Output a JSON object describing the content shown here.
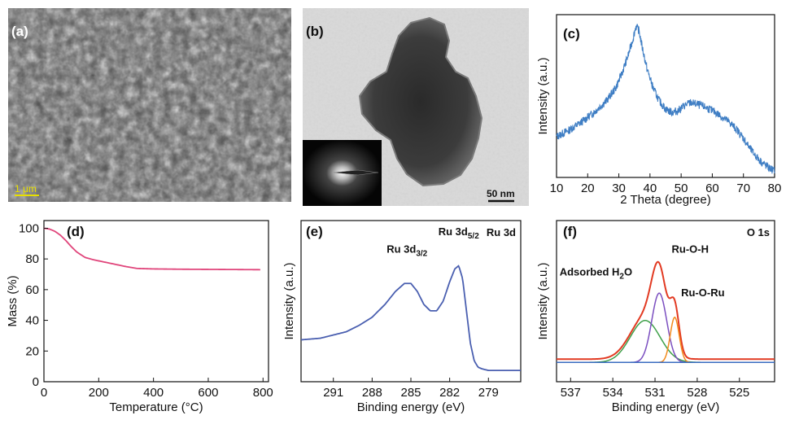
{
  "panels": {
    "a": {
      "label": "(a)",
      "scale_bar": "1 μm"
    },
    "b": {
      "label": "(b)",
      "scale_bar": "50 nm"
    },
    "c": {
      "label": "(c)"
    },
    "d": {
      "label": "(d)"
    },
    "e": {
      "label": "(e)",
      "corner": "Ru 3d"
    },
    "f": {
      "label": "(f)",
      "corner": "O 1s"
    }
  },
  "chart_data": [
    {
      "panel": "c",
      "type": "line",
      "xlabel": "2 Theta (degree)",
      "ylabel": "Intensity (a.u.)",
      "xlim": [
        10,
        80
      ],
      "ylim": [
        0,
        1
      ],
      "xticks": [
        10,
        20,
        30,
        40,
        50,
        60,
        70,
        80
      ],
      "color": "#3f7ec4",
      "noise": true,
      "series": [
        {
          "x": [
            10,
            14,
            18,
            22,
            26,
            29,
            31,
            33,
            34.5,
            35.5,
            36.5,
            37.5,
            39,
            41,
            43,
            45,
            47,
            49,
            51,
            53,
            55,
            58,
            61,
            64,
            66,
            68,
            70,
            72,
            74,
            76,
            78,
            80
          ],
          "y": [
            0.25,
            0.29,
            0.34,
            0.4,
            0.47,
            0.55,
            0.64,
            0.75,
            0.85,
            0.93,
            0.9,
            0.8,
            0.67,
            0.55,
            0.47,
            0.42,
            0.4,
            0.41,
            0.44,
            0.46,
            0.45,
            0.43,
            0.4,
            0.36,
            0.33,
            0.29,
            0.24,
            0.18,
            0.13,
            0.09,
            0.06,
            0.04
          ]
        }
      ]
    },
    {
      "panel": "d",
      "type": "line",
      "xlabel": "Temperature (°C)",
      "ylabel": "Mass (%)",
      "xlim": [
        0,
        820
      ],
      "ylim": [
        0,
        105
      ],
      "xticks": [
        0,
        200,
        400,
        600,
        800
      ],
      "yticks": [
        0,
        20,
        40,
        60,
        80,
        100
      ],
      "color": "#e0457b",
      "series": [
        {
          "x": [
            0,
            20,
            40,
            60,
            80,
            100,
            120,
            150,
            180,
            220,
            260,
            300,
            340,
            400,
            500,
            600,
            700,
            790
          ],
          "y": [
            100,
            99.5,
            98,
            95.5,
            92,
            88,
            84.5,
            81,
            79.5,
            78,
            76.5,
            75,
            73.8,
            73.5,
            73.3,
            73.2,
            73.1,
            73
          ]
        }
      ]
    },
    {
      "panel": "e",
      "type": "line",
      "xlabel": "Binding energy (eV)",
      "ylabel": "Intensity (a.u.)",
      "xlim": [
        293.5,
        276.5
      ],
      "ylim": [
        0,
        1
      ],
      "xticks": [
        291,
        288,
        285,
        282,
        279
      ],
      "color": "#4a5fb0",
      "annotations": [
        {
          "text": "Ru 3d",
          "sub": "3/2",
          "x": 285.3,
          "y": 0.8
        },
        {
          "text": "Ru 3d",
          "sub": "5/2",
          "x": 281.3,
          "y": 0.91
        }
      ],
      "series": [
        {
          "x": [
            293.5,
            292,
            291,
            290,
            289,
            288,
            287,
            286.2,
            285.5,
            285,
            284.5,
            284,
            283.5,
            283,
            282.5,
            282,
            281.6,
            281.3,
            281,
            280.7,
            280.4,
            280.1,
            279.8,
            279.5,
            279,
            278,
            277,
            276.5
          ],
          "y": [
            0.26,
            0.27,
            0.29,
            0.31,
            0.35,
            0.4,
            0.48,
            0.56,
            0.61,
            0.61,
            0.56,
            0.48,
            0.44,
            0.44,
            0.5,
            0.62,
            0.7,
            0.72,
            0.64,
            0.44,
            0.24,
            0.13,
            0.09,
            0.08,
            0.07,
            0.07,
            0.07,
            0.07
          ]
        }
      ]
    },
    {
      "panel": "f",
      "type": "line",
      "xlabel": "Binding energy (eV)",
      "ylabel": "Intensity (a.u.)",
      "xlim": [
        538,
        522.5
      ],
      "ylim": [
        0,
        1
      ],
      "xticks": [
        537,
        534,
        531,
        528,
        525
      ],
      "annotations": [
        {
          "text": "Adsorbed H",
          "sub": "2",
          "after": "O",
          "x": 535.2,
          "y": 0.66
        },
        {
          "text": "Ru-O-H",
          "x": 528.5,
          "y": 0.8
        },
        {
          "text": "Ru-O-Ru",
          "x": 527.6,
          "y": 0.53
        }
      ],
      "series": [
        {
          "name": "Total",
          "color": "#e23a22",
          "peaks": [
            [
              531.7,
              1.5,
              0.26
            ],
            [
              530.7,
              0.75,
              0.43
            ],
            [
              529.6,
              0.45,
              0.28
            ]
          ],
          "base": 0.14
        },
        {
          "name": "Adsorbed H2O",
          "color": "#3fa04a",
          "peaks": [
            [
              531.7,
              1.5,
              0.26
            ]
          ],
          "base": 0.12
        },
        {
          "name": "Ru-O-H",
          "color": "#7b4fc0",
          "peaks": [
            [
              530.7,
              0.75,
              0.43
            ]
          ],
          "base": 0.12
        },
        {
          "name": "Ru-O-Ru",
          "color": "#f28a1c",
          "peaks": [
            [
              529.6,
              0.45,
              0.28
            ]
          ],
          "base": 0.12
        },
        {
          "name": "Background",
          "color": "#3a6cc0",
          "peaks": [],
          "base": 0.12
        }
      ]
    }
  ]
}
